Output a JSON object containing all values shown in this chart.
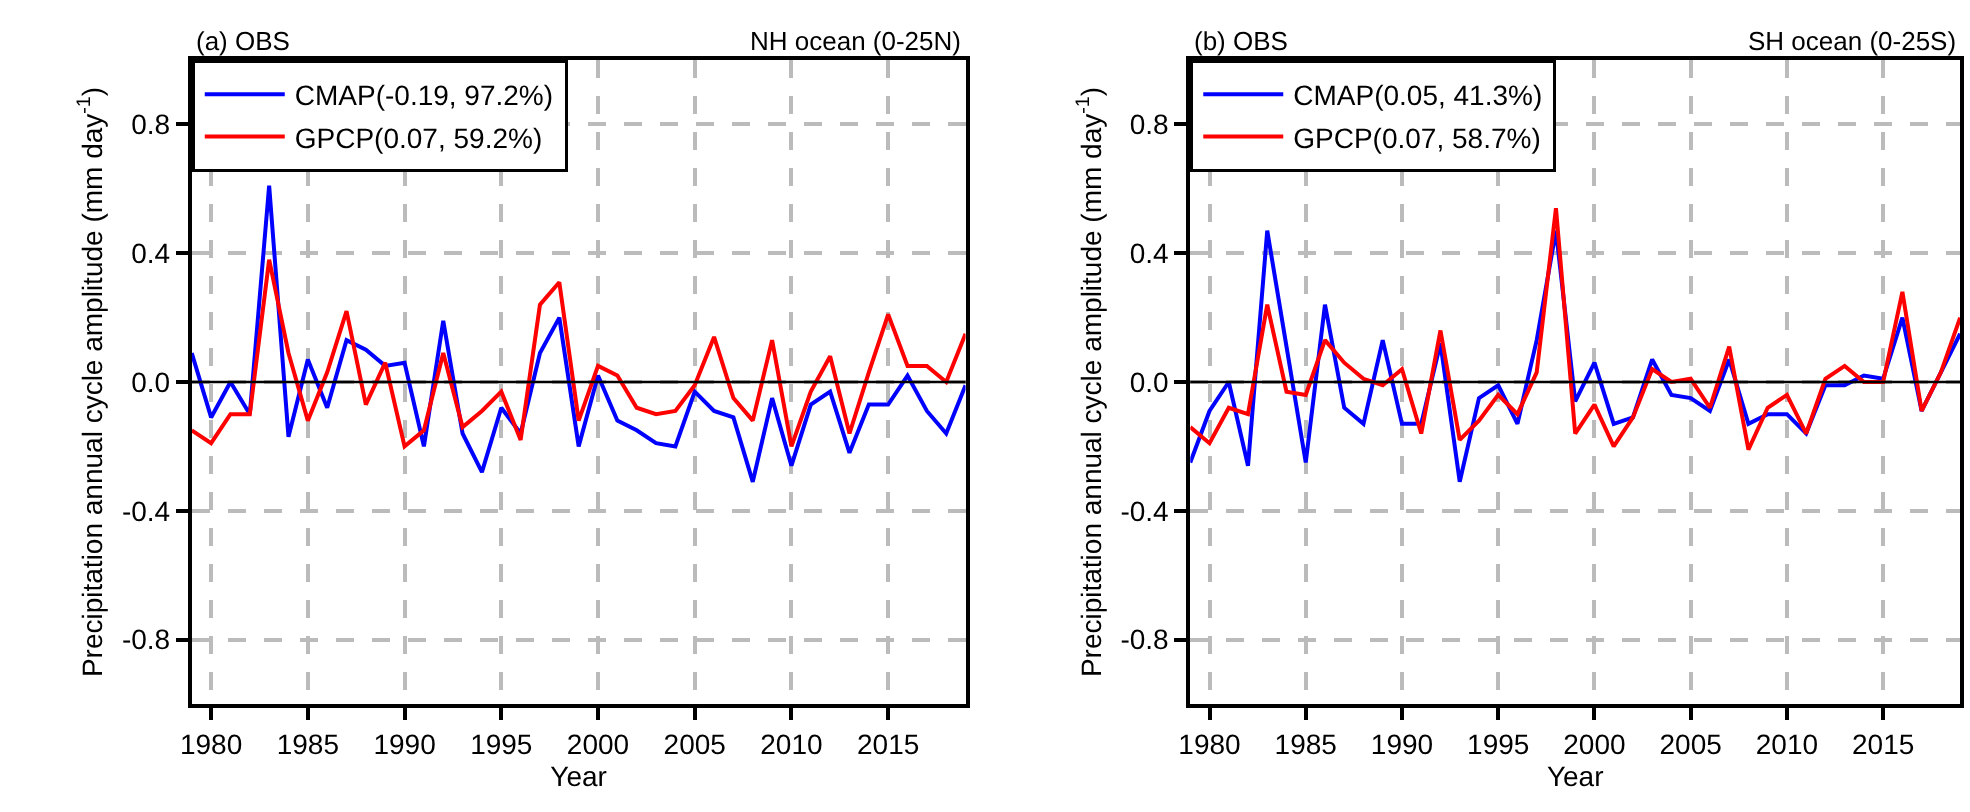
{
  "chart_data": [
    {
      "type": "line",
      "title": "(a) OBS",
      "subtitle": "NH ocean (0-25N)",
      "xlabel": "Year",
      "ylabel": "Precipitation annual cycle amplitude (mm day$^{-1}$)",
      "x": [
        1979,
        1980,
        1981,
        1982,
        1983,
        1984,
        1985,
        1986,
        1987,
        1988,
        1989,
        1990,
        1991,
        1992,
        1993,
        1994,
        1995,
        1996,
        1997,
        1998,
        1999,
        2000,
        2001,
        2002,
        2003,
        2004,
        2005,
        2006,
        2007,
        2008,
        2009,
        2010,
        2011,
        2012,
        2013,
        2014,
        2015,
        2016,
        2017,
        2018,
        2019
      ],
      "series": [
        {
          "name": "CMAP(-0.19, 97.2%)",
          "color": "#0000ff",
          "values": [
            0.09,
            -0.11,
            0.0,
            -0.1,
            0.61,
            -0.17,
            0.07,
            -0.08,
            0.13,
            0.1,
            0.05,
            0.06,
            -0.2,
            0.19,
            -0.16,
            -0.28,
            -0.08,
            -0.16,
            0.09,
            0.2,
            -0.2,
            0.02,
            -0.12,
            -0.15,
            -0.19,
            -0.2,
            -0.03,
            -0.09,
            -0.11,
            -0.31,
            -0.05,
            -0.26,
            -0.07,
            -0.03,
            -0.22,
            -0.07,
            -0.07,
            0.02,
            -0.09,
            -0.16,
            -0.01
          ]
        },
        {
          "name": "GPCP(0.07, 59.2%)",
          "color": "#ff0000",
          "values": [
            -0.15,
            -0.19,
            -0.1,
            -0.1,
            0.38,
            0.09,
            -0.12,
            0.03,
            0.22,
            -0.07,
            0.06,
            -0.2,
            -0.15,
            0.09,
            -0.14,
            -0.09,
            -0.03,
            -0.18,
            0.24,
            0.31,
            -0.12,
            0.05,
            0.02,
            -0.08,
            -0.1,
            -0.09,
            -0.01,
            0.14,
            -0.05,
            -0.12,
            0.13,
            -0.2,
            -0.03,
            0.08,
            -0.16,
            0.03,
            0.21,
            0.05,
            0.05,
            0.0,
            0.15
          ]
        }
      ],
      "xlim": [
        1979,
        2019
      ],
      "xticks": [
        1980,
        1985,
        1990,
        1995,
        2000,
        2005,
        2010,
        2015
      ],
      "ylim": [
        -1.0,
        1.0
      ],
      "yticks": [
        {
          "value": -0.8,
          "label": "-0.8"
        },
        {
          "value": -0.4,
          "label": "-0.4"
        },
        {
          "value": 0,
          "label": "0.0"
        },
        {
          "value": 0.4,
          "label": "0.4"
        },
        {
          "value": 0.8,
          "label": "0.8"
        }
      ],
      "ref_lines": [
        {
          "axis": "y",
          "value": 0,
          "color": "#000000"
        }
      ],
      "grid": true,
      "legend": "top left",
      "marker": "none",
      "line_style": "solid"
    },
    {
      "type": "line",
      "title": "(b) OBS",
      "subtitle": "SH ocean (0-25S)",
      "xlabel": "Year",
      "ylabel": "Precipitation annual cycle amplitude (mm day$^{-1}$)",
      "x": [
        1979,
        1980,
        1981,
        1982,
        1983,
        1984,
        1985,
        1986,
        1987,
        1988,
        1989,
        1990,
        1991,
        1992,
        1993,
        1994,
        1995,
        1996,
        1997,
        1998,
        1999,
        2000,
        2001,
        2002,
        2003,
        2004,
        2005,
        2006,
        2007,
        2008,
        2009,
        2010,
        2011,
        2012,
        2013,
        2014,
        2015,
        2016,
        2017,
        2018,
        2019
      ],
      "series": [
        {
          "name": "CMAP(0.05, 41.3%)",
          "color": "#0000ff",
          "values": [
            -0.25,
            -0.09,
            0.0,
            -0.26,
            0.47,
            0.11,
            -0.25,
            0.24,
            -0.08,
            -0.13,
            0.13,
            -0.13,
            -0.13,
            0.12,
            -0.31,
            -0.05,
            -0.01,
            -0.13,
            0.13,
            0.47,
            -0.06,
            0.06,
            -0.13,
            -0.11,
            0.07,
            -0.04,
            -0.05,
            -0.09,
            0.07,
            -0.13,
            -0.1,
            -0.1,
            -0.16,
            -0.01,
            -0.01,
            0.02,
            0.01,
            0.2,
            -0.09,
            0.03,
            0.15
          ]
        },
        {
          "name": "GPCP(0.07, 58.7%)",
          "color": "#ff0000",
          "values": [
            -0.14,
            -0.19,
            -0.08,
            -0.1,
            0.24,
            -0.03,
            -0.04,
            0.13,
            0.06,
            0.01,
            -0.01,
            0.04,
            -0.16,
            0.16,
            -0.18,
            -0.12,
            -0.04,
            -0.1,
            0.03,
            0.54,
            -0.16,
            -0.07,
            -0.2,
            -0.11,
            0.04,
            0.0,
            0.01,
            -0.08,
            0.11,
            -0.21,
            -0.08,
            -0.04,
            -0.16,
            0.01,
            0.05,
            0.0,
            0.0,
            0.28,
            -0.09,
            0.03,
            0.2
          ]
        }
      ],
      "xlim": [
        1979,
        2019
      ],
      "xticks": [
        1980,
        1985,
        1990,
        1995,
        2000,
        2005,
        2010,
        2015
      ],
      "ylim": [
        -1.0,
        1.0
      ],
      "yticks": [
        {
          "value": -0.8,
          "label": "-0.8"
        },
        {
          "value": -0.4,
          "label": "-0.4"
        },
        {
          "value": 0,
          "label": "0.0"
        },
        {
          "value": 0.4,
          "label": "0.4"
        },
        {
          "value": 0.8,
          "label": "0.8"
        }
      ],
      "ref_lines": [
        {
          "axis": "y",
          "value": 0,
          "color": "#000000"
        }
      ],
      "grid": true,
      "legend": "top left",
      "marker": "none",
      "line_style": "solid"
    }
  ]
}
